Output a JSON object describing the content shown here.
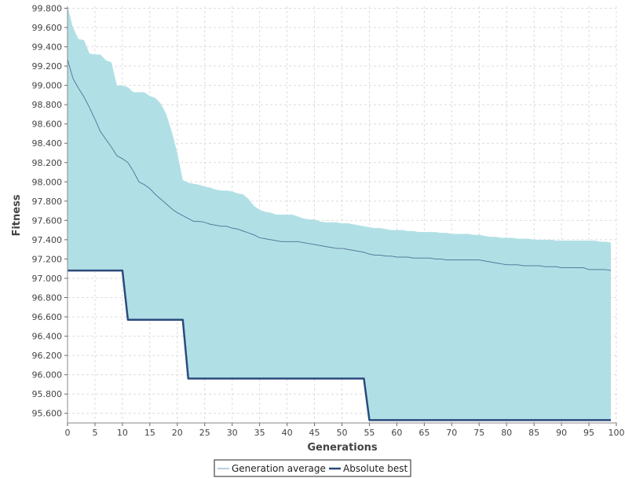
{
  "chart_data": {
    "type": "area",
    "xlabel": "Generations",
    "ylabel": "Fitness",
    "xlim": [
      0,
      100
    ],
    "ylim": [
      95.5,
      99.82
    ],
    "x_ticks": [
      "0",
      "5",
      "10",
      "15",
      "20",
      "25",
      "30",
      "35",
      "40",
      "45",
      "50",
      "55",
      "60",
      "65",
      "70",
      "75",
      "80",
      "85",
      "90",
      "95",
      "100"
    ],
    "y_ticks": [
      "95.600",
      "95.800",
      "96.000",
      "96.200",
      "96.400",
      "96.600",
      "96.800",
      "97.000",
      "97.200",
      "97.400",
      "97.600",
      "97.800",
      "98.000",
      "98.200",
      "98.400",
      "98.600",
      "98.800",
      "99.000",
      "99.200",
      "99.400",
      "99.600",
      "99.800"
    ],
    "grid": true,
    "legend_position": "bottom-center",
    "band": {
      "x": [
        0,
        1,
        2,
        3,
        4,
        5,
        6,
        7,
        8,
        9,
        10,
        11,
        12,
        13,
        14,
        15,
        16,
        17,
        18,
        19,
        20,
        21,
        22,
        23,
        24,
        25,
        26,
        27,
        28,
        29,
        30,
        31,
        32,
        33,
        34,
        35,
        36,
        37,
        38,
        39,
        40,
        41,
        42,
        43,
        44,
        45,
        46,
        47,
        48,
        49,
        50,
        51,
        52,
        53,
        54,
        55,
        56,
        57,
        58,
        59,
        60,
        61,
        62,
        63,
        64,
        65,
        66,
        67,
        68,
        69,
        70,
        71,
        72,
        73,
        74,
        75,
        76,
        77,
        78,
        79,
        80,
        81,
        82,
        83,
        84,
        85,
        86,
        87,
        88,
        89,
        90,
        91,
        92,
        93,
        94,
        95,
        96,
        97,
        98,
        99
      ],
      "upper": [
        99.82,
        99.6,
        99.48,
        99.47,
        99.33,
        99.32,
        99.32,
        99.26,
        99.24,
        99.0,
        99.0,
        98.98,
        98.93,
        98.93,
        98.93,
        98.89,
        98.87,
        98.81,
        98.7,
        98.52,
        98.3,
        98.02,
        97.99,
        97.98,
        97.97,
        97.95,
        97.94,
        97.92,
        97.91,
        97.91,
        97.9,
        97.88,
        97.87,
        97.82,
        97.75,
        97.71,
        97.69,
        97.68,
        97.66,
        97.66,
        97.66,
        97.66,
        97.64,
        97.62,
        97.61,
        97.61,
        97.59,
        97.58,
        97.58,
        97.58,
        97.57,
        97.57,
        97.56,
        97.55,
        97.54,
        97.53,
        97.52,
        97.52,
        97.51,
        97.5,
        97.5,
        97.5,
        97.49,
        97.49,
        97.48,
        97.48,
        97.48,
        97.48,
        97.47,
        97.47,
        97.46,
        97.46,
        97.46,
        97.46,
        97.45,
        97.45,
        97.44,
        97.43,
        97.43,
        97.42,
        97.42,
        97.42,
        97.41,
        97.41,
        97.41,
        97.4,
        97.4,
        97.4,
        97.4,
        97.39,
        97.39,
        97.39,
        97.39,
        97.39,
        97.39,
        97.39,
        97.39,
        97.38,
        97.38,
        97.37
      ],
      "lower": [
        97.08,
        97.08,
        97.08,
        97.08,
        97.08,
        97.08,
        97.08,
        97.08,
        97.08,
        97.08,
        97.08,
        96.57,
        96.57,
        96.57,
        96.57,
        96.57,
        96.57,
        96.57,
        96.57,
        96.57,
        96.57,
        96.57,
        95.96,
        95.96,
        95.96,
        95.96,
        95.96,
        95.96,
        95.96,
        95.96,
        95.96,
        95.96,
        95.96,
        95.96,
        95.96,
        95.96,
        95.96,
        95.96,
        95.96,
        95.96,
        95.96,
        95.96,
        95.96,
        95.96,
        95.96,
        95.96,
        95.96,
        95.96,
        95.96,
        95.96,
        95.96,
        95.96,
        95.96,
        95.96,
        95.96,
        95.53,
        95.53,
        95.53,
        95.53,
        95.53,
        95.53,
        95.53,
        95.53,
        95.53,
        95.53,
        95.53,
        95.53,
        95.53,
        95.53,
        95.53,
        95.53,
        95.53,
        95.53,
        95.53,
        95.53,
        95.53,
        95.53,
        95.53,
        95.53,
        95.53,
        95.53,
        95.53,
        95.53,
        95.53,
        95.53,
        95.53,
        95.53,
        95.53,
        95.53,
        95.53,
        95.53,
        95.53,
        95.53,
        95.53,
        95.53,
        95.53,
        95.53,
        95.53,
        95.53,
        95.53
      ]
    },
    "series": [
      {
        "name": "Generation average",
        "color": "#5a7a9c",
        "x": [
          0,
          1,
          2,
          3,
          4,
          5,
          6,
          7,
          8,
          9,
          10,
          11,
          12,
          13,
          14,
          15,
          16,
          17,
          18,
          19,
          20,
          21,
          22,
          23,
          24,
          25,
          26,
          27,
          28,
          29,
          30,
          31,
          32,
          33,
          34,
          35,
          36,
          37,
          38,
          39,
          40,
          41,
          42,
          43,
          44,
          45,
          46,
          47,
          48,
          49,
          50,
          51,
          52,
          53,
          54,
          55,
          56,
          57,
          58,
          59,
          60,
          61,
          62,
          63,
          64,
          65,
          66,
          67,
          68,
          69,
          70,
          71,
          72,
          73,
          74,
          75,
          76,
          77,
          78,
          79,
          80,
          81,
          82,
          83,
          84,
          85,
          86,
          87,
          88,
          89,
          90,
          91,
          92,
          93,
          94,
          95,
          96,
          97,
          98,
          99
        ],
        "values": [
          99.27,
          99.07,
          98.97,
          98.88,
          98.77,
          98.65,
          98.52,
          98.44,
          98.36,
          98.27,
          98.24,
          98.2,
          98.11,
          98.0,
          97.97,
          97.93,
          97.87,
          97.82,
          97.77,
          97.72,
          97.68,
          97.65,
          97.62,
          97.59,
          97.59,
          97.58,
          97.56,
          97.55,
          97.54,
          97.54,
          97.52,
          97.51,
          97.49,
          97.47,
          97.45,
          97.42,
          97.41,
          97.4,
          97.39,
          97.38,
          97.38,
          97.38,
          97.38,
          97.37,
          97.36,
          97.35,
          97.34,
          97.33,
          97.32,
          97.31,
          97.31,
          97.3,
          97.29,
          97.28,
          97.27,
          97.25,
          97.24,
          97.24,
          97.23,
          97.23,
          97.22,
          97.22,
          97.22,
          97.21,
          97.21,
          97.21,
          97.21,
          97.2,
          97.2,
          97.19,
          97.19,
          97.19,
          97.19,
          97.19,
          97.19,
          97.19,
          97.18,
          97.17,
          97.16,
          97.15,
          97.14,
          97.14,
          97.14,
          97.13,
          97.13,
          97.13,
          97.13,
          97.12,
          97.12,
          97.12,
          97.11,
          97.11,
          97.11,
          97.11,
          97.11,
          97.09,
          97.09,
          97.09,
          97.09,
          97.08
        ]
      },
      {
        "name": "Absolute best",
        "color": "#2c4a7c",
        "step": true,
        "x": [
          0,
          10,
          11,
          21,
          22,
          54,
          55,
          99
        ],
        "values": [
          97.08,
          97.08,
          96.57,
          96.57,
          95.96,
          95.96,
          95.53,
          95.53
        ]
      }
    ],
    "band_color": "#b0e0e6"
  },
  "legend": {
    "items": [
      {
        "label": "Generation average",
        "color": "#a0bcd8"
      },
      {
        "label": "Absolute best",
        "color": "#2c4a7c"
      }
    ]
  }
}
